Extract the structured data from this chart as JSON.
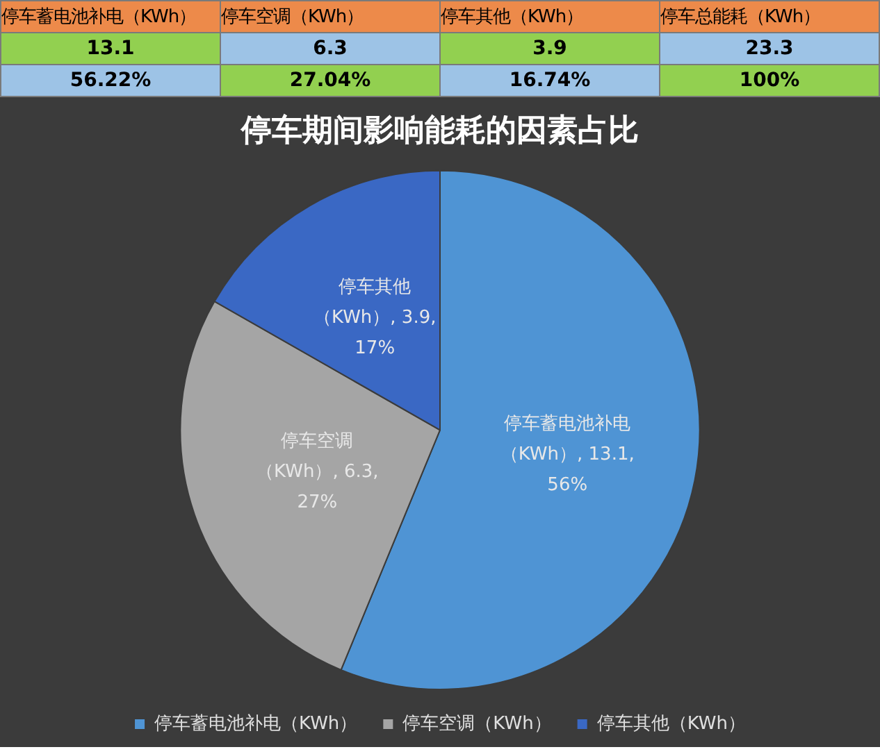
{
  "chart_data": {
    "type": "pie",
    "title": "停车期间影响能耗的因素占比",
    "categories": [
      "停车蓄电池补电（KWh）",
      "停车空调（KWh）",
      "停车其他（KWh）"
    ],
    "values": [
      13.1,
      6.3,
      3.9
    ],
    "colors": [
      "#4f94d4",
      "#a5a5a5",
      "#3a68c4"
    ],
    "value_labels": [
      "停车蓄电池补电（KWh）, 13.1, 56%",
      "停车空调（KWh）, 6.3, 27%",
      "停车其他（KWh）, 3.9, 17%"
    ],
    "annotations": [
      "13.1",
      "6.3",
      "3.9",
      "23.3",
      "56.22%",
      "27.04%",
      "16.74%",
      "100%",
      "停车总能耗（KWh）"
    ],
    "legend": "bottom"
  }
}
